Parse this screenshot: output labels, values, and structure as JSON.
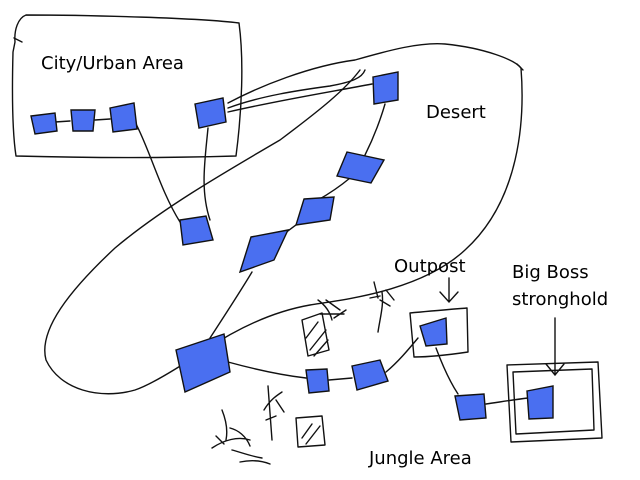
{
  "labels": {
    "city": "City/Urban Area",
    "desert": "Desert",
    "outpost": "Outpost",
    "stronghold_line1": "Big Boss",
    "stronghold_line2": "stronghold",
    "jungle": "Jungle Area"
  },
  "colors": {
    "node_fill": "#4a6ff0",
    "stroke": "#111111",
    "background": "#ffffff"
  }
}
